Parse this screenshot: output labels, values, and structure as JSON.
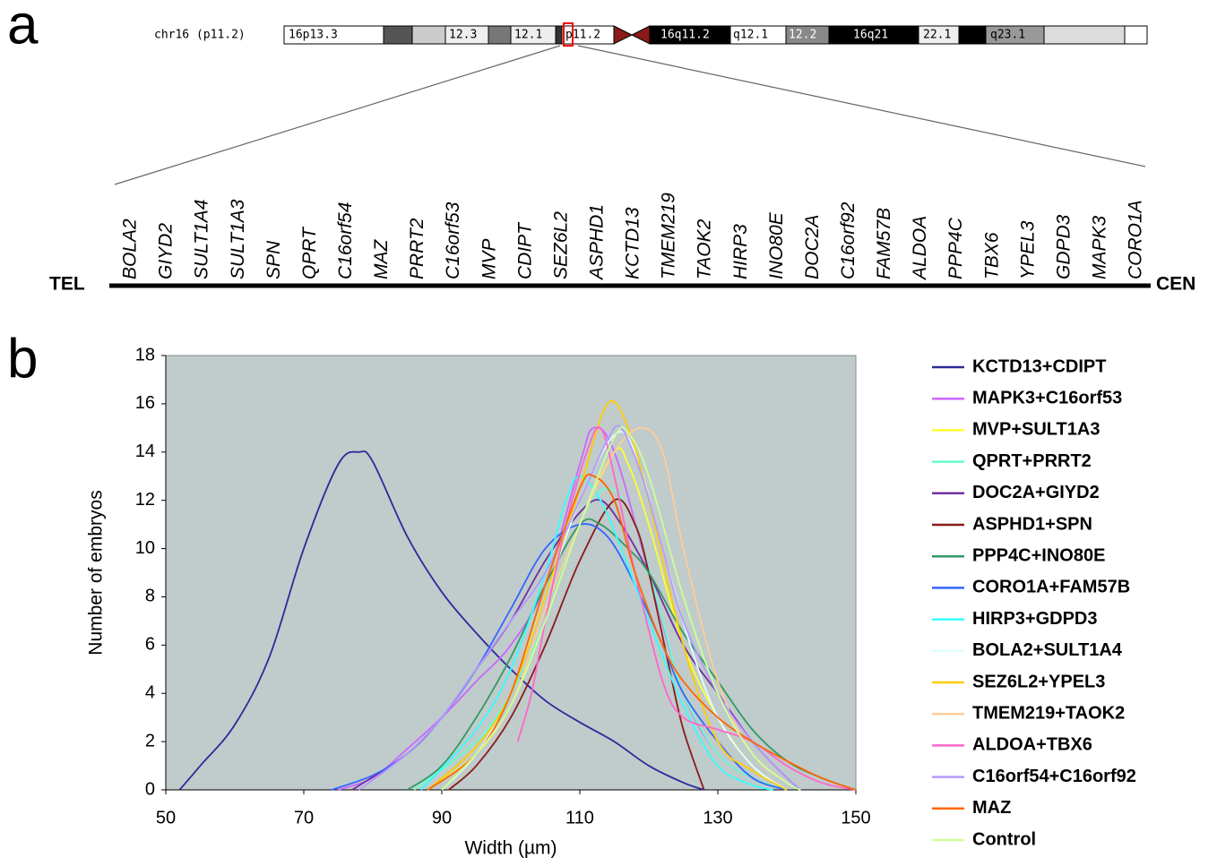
{
  "panel_a": {
    "label": "a",
    "chromosome": "chr16 (p11.2)",
    "bands": [
      "16p13.3",
      "12.3",
      "12.1",
      "p11.2",
      "16q11.2",
      "q12.1",
      "12.2",
      "16q21",
      "22.1",
      "q23.1"
    ],
    "genes": [
      "BOLA2",
      "GIYD2",
      "SULT1A4",
      "SULT1A3",
      "SPN",
      "QPRT",
      "C16orf54",
      "MAZ",
      "PRRT2",
      "C16orf53",
      "MVP",
      "CDIPT",
      "SEZ6L2",
      "ASPHD1",
      "KCTD13",
      "TMEM219",
      "TAOK2",
      "HIRP3",
      "INO80E",
      "DOC2A",
      "C16orf92",
      "FAM57B",
      "ALDOA",
      "PPP4C",
      "TBX6",
      "YPEL3",
      "GDPD3",
      "MAPK3",
      "CORO1A"
    ],
    "left_end": "TEL",
    "right_end": "CEN"
  },
  "chart_data": {
    "type": "line",
    "panel_label": "b",
    "x_label": "Width (µm)",
    "y_label": "Number of embryos",
    "xlim": [
      50,
      150
    ],
    "xticks": [
      50,
      70,
      90,
      110,
      130,
      150
    ],
    "ylim": [
      0,
      18
    ],
    "yticks": [
      0,
      2,
      4,
      6,
      8,
      10,
      12,
      14,
      16,
      18
    ],
    "plot_background": "#c0cbcb",
    "series": [
      {
        "name": "KCTD13+CDIPT",
        "color": "#2b2b9a",
        "x": [
          52,
          55,
          60,
          65,
          70,
          75,
          78,
          80,
          85,
          90,
          95,
          100,
          105,
          110,
          115,
          120,
          125,
          128
        ],
        "values": [
          0,
          1,
          2.7,
          5.5,
          10,
          13.5,
          14,
          13.6,
          10.5,
          8.2,
          6.5,
          5,
          3.7,
          2.8,
          2,
          1,
          0.3,
          0
        ]
      },
      {
        "name": "MAPK3+C16orf53",
        "color": "#cc66ff",
        "x": [
          75,
          80,
          85,
          90,
          95,
          100,
          105,
          110,
          112,
          115,
          120,
          125,
          130,
          135,
          140
        ],
        "values": [
          0,
          0.5,
          1.7,
          3,
          4.5,
          6,
          8.5,
          13.5,
          15,
          14,
          9,
          4,
          1.5,
          0.5,
          0
        ]
      },
      {
        "name": "MVP+SULT1A3",
        "color": "#ffff33",
        "x": [
          88,
          95,
          100,
          105,
          110,
          115,
          117,
          120,
          125,
          130,
          135,
          140
        ],
        "values": [
          0,
          1.5,
          3.5,
          7,
          11,
          14,
          13.5,
          11,
          6,
          3,
          1,
          0
        ]
      },
      {
        "name": "QPRT+PRRT2",
        "color": "#66ffcc",
        "x": [
          86,
          95,
          100,
          105,
          110,
          114,
          118,
          122,
          125,
          130,
          135,
          140
        ],
        "values": [
          0,
          2,
          4,
          7,
          11,
          12.5,
          11,
          7,
          4,
          1.5,
          0.5,
          0
        ]
      },
      {
        "name": "DOC2A+GIYD2",
        "color": "#7030a0",
        "x": [
          77,
          85,
          90,
          95,
          100,
          105,
          110,
          113,
          116,
          120,
          125,
          130,
          135,
          140,
          142
        ],
        "values": [
          0,
          1.5,
          3,
          5,
          7,
          9.5,
          11.5,
          12,
          11,
          9,
          6,
          4,
          2,
          0.5,
          0
        ]
      },
      {
        "name": "ASPHD1+SPN",
        "color": "#8b1a1a",
        "x": [
          91,
          95,
          100,
          105,
          110,
          115,
          118,
          120,
          123,
          125,
          128
        ],
        "values": [
          0,
          1,
          3,
          6,
          9.5,
          12,
          11,
          9,
          5,
          2.5,
          0
        ]
      },
      {
        "name": "PPP4C+INO80E",
        "color": "#339966",
        "x": [
          85,
          90,
          95,
          100,
          105,
          110,
          113,
          117,
          120,
          125,
          130,
          135,
          140,
          145,
          150
        ],
        "values": [
          0,
          1,
          3,
          5.5,
          8.5,
          11,
          11,
          10,
          9,
          6.5,
          4.5,
          2.5,
          1.2,
          0.5,
          0
        ]
      },
      {
        "name": "CORO1A+FAM57B",
        "color": "#3366ff",
        "x": [
          74,
          80,
          85,
          90,
          95,
          100,
          105,
          110,
          114,
          118,
          122,
          125,
          130,
          135,
          140
        ],
        "values": [
          0,
          0.6,
          1.5,
          3,
          5,
          7.5,
          10,
          11,
          10.5,
          8.5,
          6,
          4,
          2,
          0.5,
          0
        ]
      },
      {
        "name": "HIRP3+GDPD3",
        "color": "#33ffff",
        "x": [
          87,
          95,
          100,
          105,
          108,
          110,
          113,
          116,
          120,
          125,
          130,
          135,
          138
        ],
        "values": [
          0,
          2.5,
          5,
          9,
          12,
          13,
          12,
          10,
          7,
          3.5,
          1,
          0.2,
          0
        ]
      },
      {
        "name": "BOLA2+SULT1A4",
        "color": "#e0ffff",
        "x": [
          90,
          95,
          100,
          105,
          110,
          115,
          118,
          122,
          126,
          130,
          135,
          140
        ],
        "values": [
          0,
          1.5,
          4,
          8,
          12,
          14.7,
          14,
          10,
          6,
          3,
          1,
          0
        ]
      },
      {
        "name": "SEZ6L2+YPEL3",
        "color": "#ffcc00",
        "x": [
          88,
          95,
          100,
          105,
          110,
          114,
          117,
          120,
          125,
          130,
          135,
          140
        ],
        "values": [
          0,
          1.8,
          4,
          8,
          12.5,
          16,
          15,
          12,
          6,
          2,
          0.8,
          0
        ]
      },
      {
        "name": "TMEM219+TAOK2",
        "color": "#ffcc99",
        "x": [
          90,
          95,
          100,
          105,
          110,
          115,
          119,
          122,
          125,
          130,
          135,
          140,
          142
        ],
        "values": [
          0,
          1.5,
          3.5,
          7.5,
          11,
          14,
          15,
          14,
          10,
          4.5,
          1.5,
          0.3,
          0
        ]
      },
      {
        "name": "ALDOA+TBX6",
        "color": "#ff66cc",
        "x": [
          101,
          103,
          105,
          108,
          111,
          113,
          115,
          118,
          122,
          125,
          130,
          135,
          140,
          145,
          150
        ],
        "values": [
          2,
          4,
          7,
          11,
          14,
          15,
          13,
          9,
          4.5,
          3,
          2.5,
          2,
          1,
          0.3,
          0
        ]
      },
      {
        "name": "C16orf54+C16orf92",
        "color": "#b499ff",
        "x": [
          78,
          85,
          90,
          95,
          100,
          105,
          110,
          114,
          116,
          119,
          122,
          125,
          130,
          135,
          140,
          142
        ],
        "values": [
          0,
          1.5,
          3,
          5,
          7,
          9,
          12,
          14.5,
          15,
          13,
          10,
          7,
          4,
          2,
          0.5,
          0
        ]
      },
      {
        "name": "MAZ",
        "color": "#ff6600",
        "x": [
          88,
          95,
          100,
          105,
          110,
          112,
          115,
          118,
          122,
          125,
          130,
          135,
          140,
          145,
          150
        ],
        "values": [
          0,
          1.5,
          4,
          8.5,
          12.5,
          13,
          12,
          9,
          6,
          4.5,
          3,
          2,
          1.2,
          0.5,
          0
        ]
      },
      {
        "name": "Control",
        "color": "#ccff99",
        "x": [
          90,
          95,
          100,
          105,
          110,
          115,
          117,
          120,
          125,
          130,
          135,
          140,
          142
        ],
        "values": [
          0,
          1.5,
          3.5,
          7,
          11,
          14.6,
          14.8,
          13,
          8,
          4,
          1.5,
          0.3,
          0
        ]
      }
    ]
  }
}
